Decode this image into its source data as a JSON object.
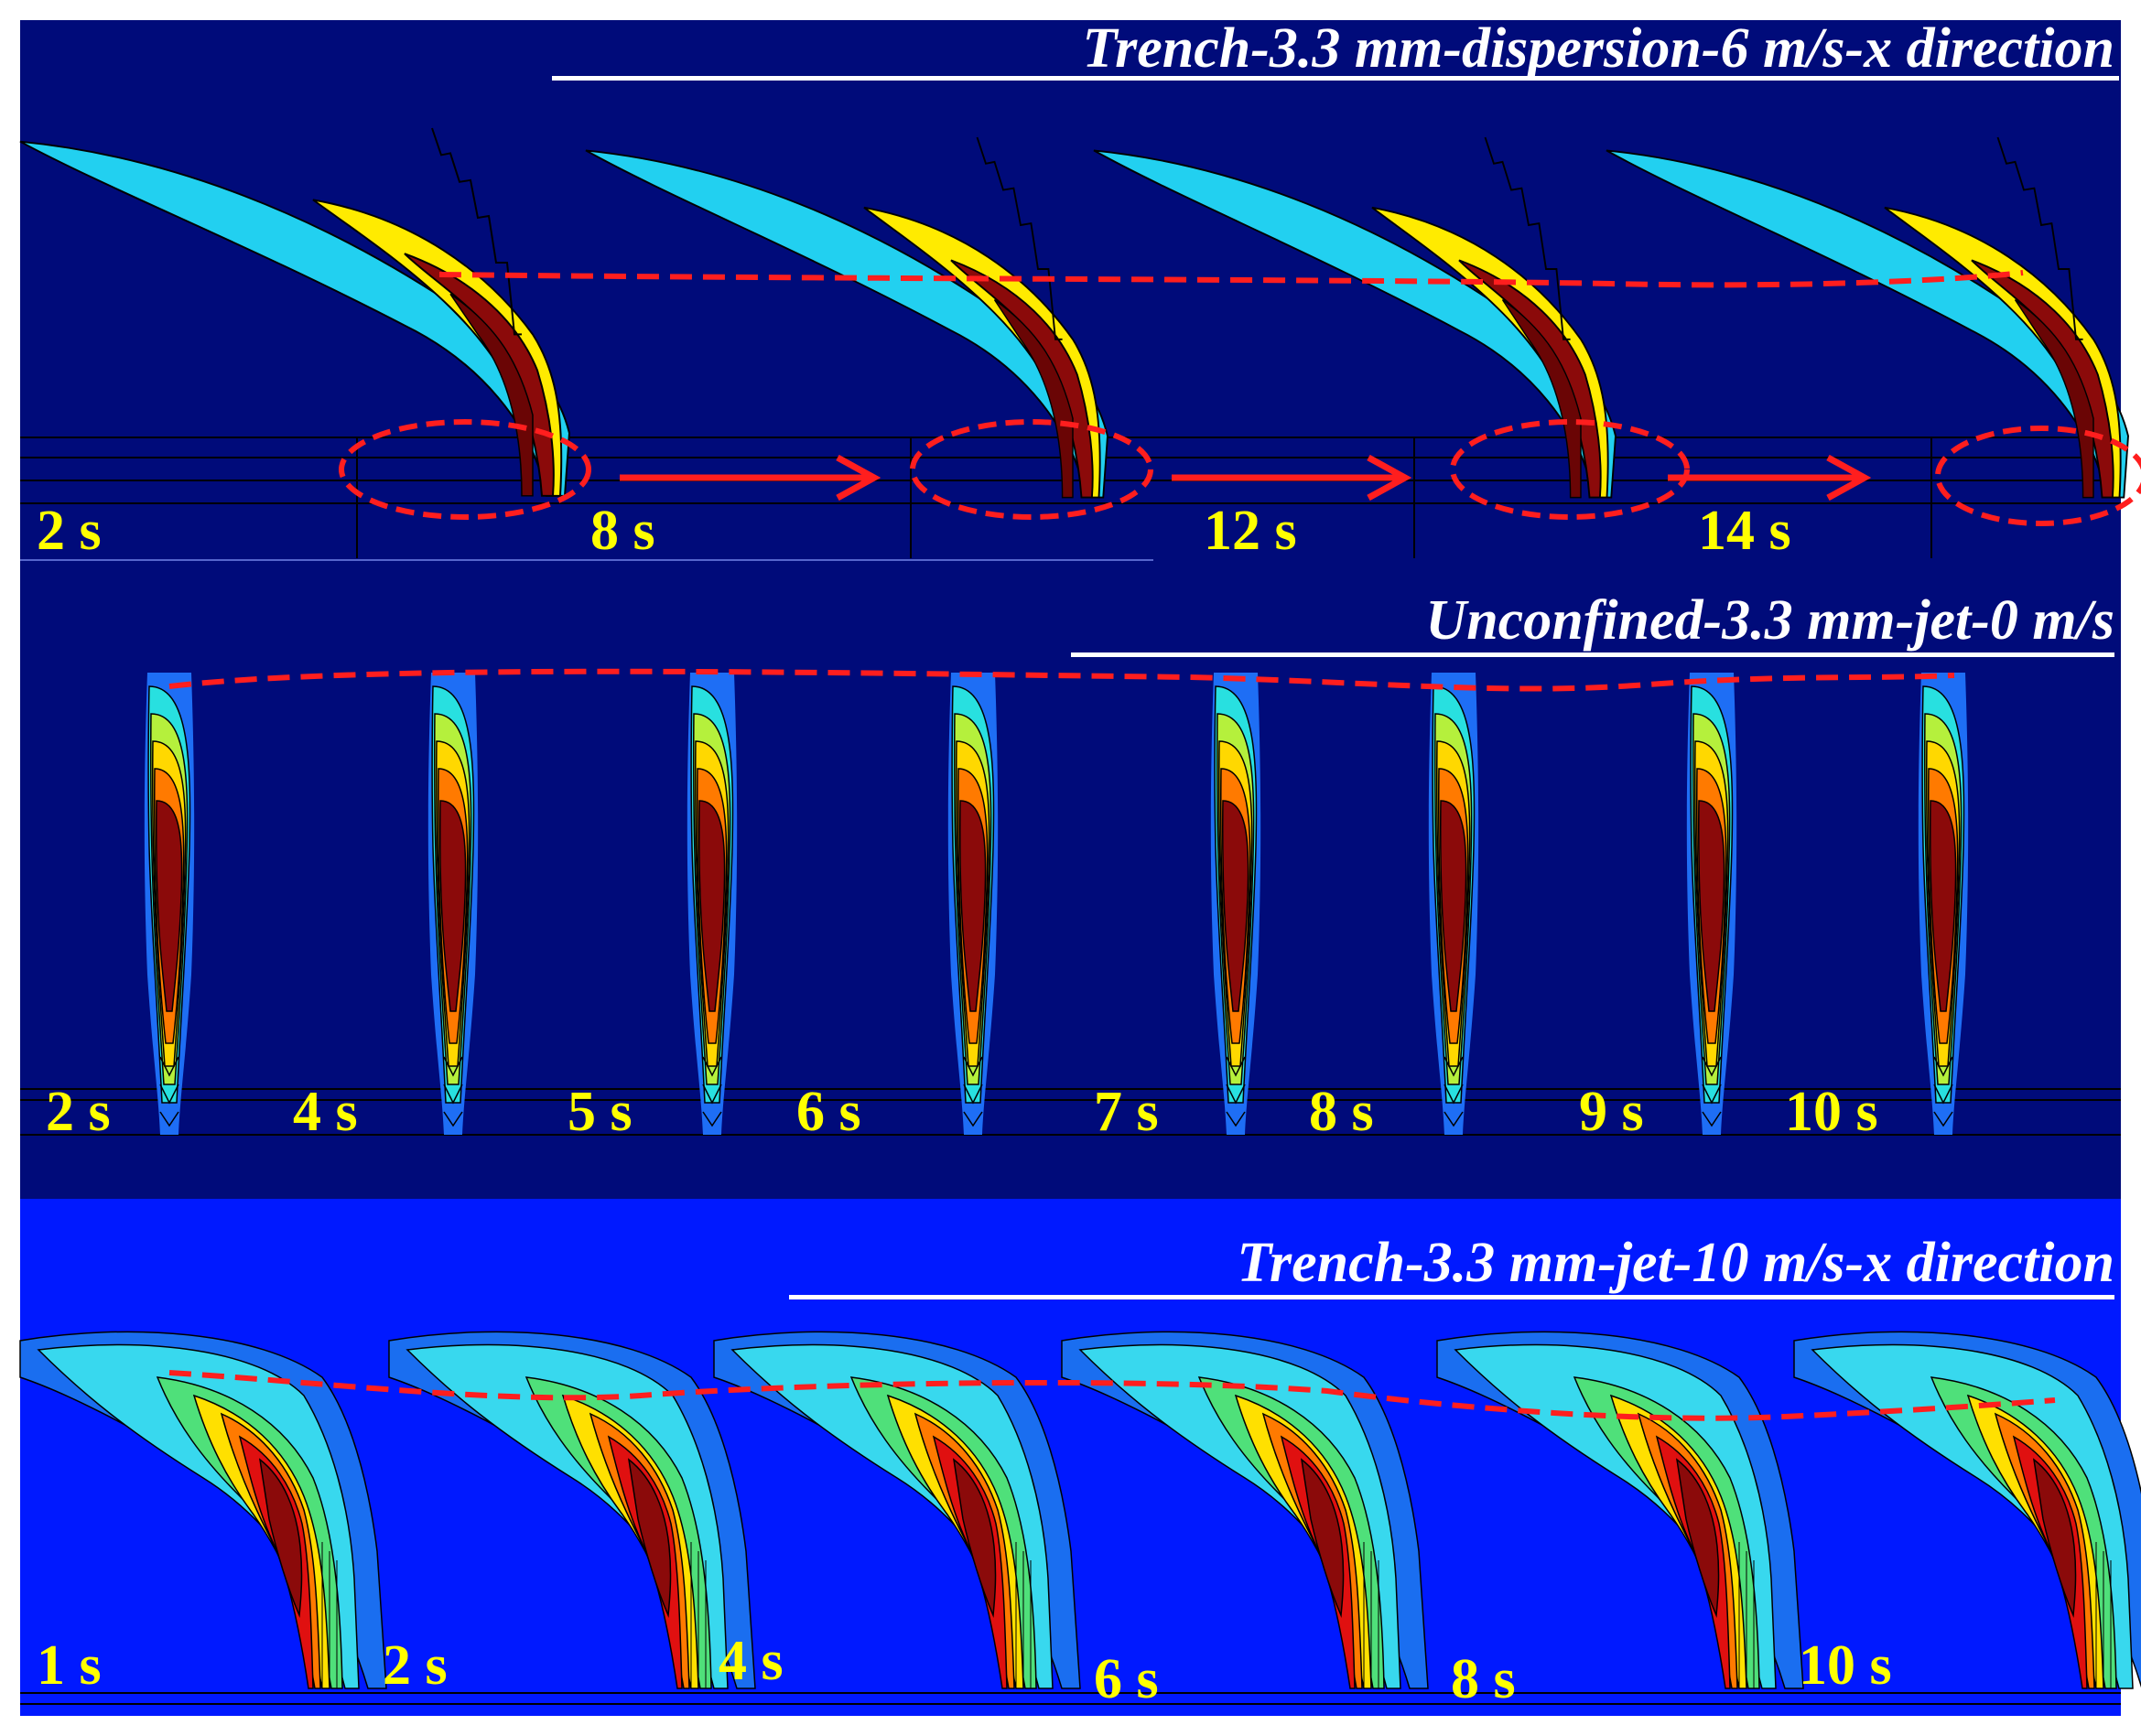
{
  "panels": [
    {
      "id": "top",
      "title": "Trench-3.3 mm-dispersion-6 m/s-x direction",
      "time_labels": [
        "2 s",
        "8 s",
        "12 s",
        "14 s"
      ],
      "colors": {
        "background": "#000b7a",
        "outer": "#22d0f0",
        "middle": "#ffeb00",
        "core": "#8b0a0a"
      }
    },
    {
      "id": "middle",
      "title": "Unconfined-3.3 mm-jet-0 m/s",
      "time_labels": [
        "2 s",
        "4 s",
        "5 s",
        "6 s",
        "7 s",
        "8 s",
        "9 s",
        "10 s"
      ],
      "colors": {
        "background": "#000b7a",
        "outer": "#1e6ef5",
        "ring1": "#28e0e0",
        "ring2": "#b5f03c",
        "ring3": "#ffd800",
        "ring4": "#ff7a00",
        "core": "#8b0a0a"
      }
    },
    {
      "id": "bottom",
      "title": "Trench-3.3 mm-jet-10 m/s-x direction",
      "time_labels": [
        "1 s",
        "2 s",
        "4 s",
        "6 s",
        "8 s",
        "10 s"
      ],
      "colors": {
        "background": "#0019ff",
        "outer": "#1a6ef0",
        "light": "#38d8ee",
        "green": "#4fe07a",
        "yellow": "#ffe000",
        "orange": "#ff7a00",
        "red": "#e01010",
        "core": "#8b0a0a"
      }
    }
  ],
  "annotations": {
    "dashed_line_color": "#ff1e1e",
    "label_color": "#ffff00",
    "title_color": "#ffffff"
  }
}
